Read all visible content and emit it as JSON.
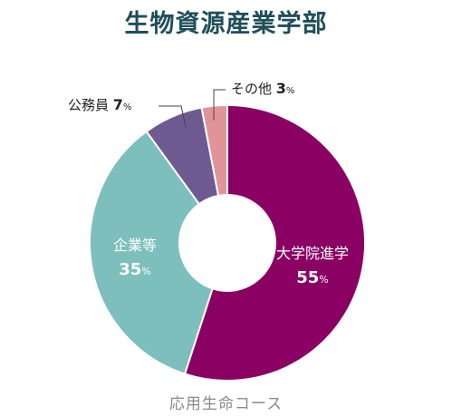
{
  "chart_data": {
    "type": "pie",
    "title": "生物資源産業学部",
    "subtitle": "応用生命コース",
    "slices": [
      {
        "label": "大学院進学",
        "value": 55,
        "color": "#8a0063",
        "text_color": "#ffffff"
      },
      {
        "label": "企業等",
        "value": 35,
        "color": "#7dbfbc",
        "text_color": "#ffffff"
      },
      {
        "label": "公務員",
        "value": 7,
        "color": "#6e5a90",
        "text_color": "#222222"
      },
      {
        "label": "その他",
        "value": 3,
        "color": "#e0949a",
        "text_color": "#222222"
      }
    ],
    "percent_unit": "%"
  }
}
